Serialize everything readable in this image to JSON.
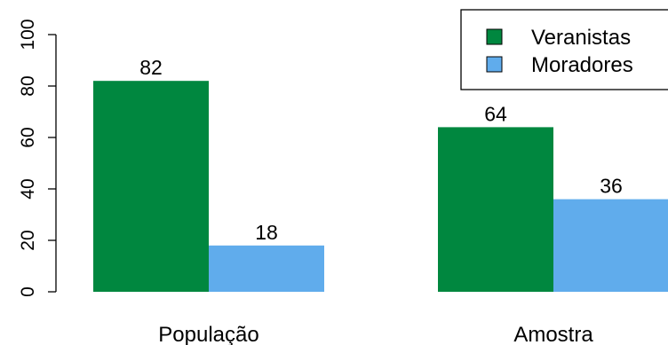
{
  "chart_data": {
    "type": "bar",
    "categories": [
      "População",
      "Amostra"
    ],
    "series": [
      {
        "name": "Veranistas",
        "values": [
          82,
          64
        ],
        "color": "#00873F"
      },
      {
        "name": "Moradores",
        "values": [
          18,
          36
        ],
        "color": "#60ACEC"
      }
    ],
    "ylim": [
      0,
      100
    ],
    "yticks": [
      "0",
      "20",
      "40",
      "60",
      "80",
      "100"
    ],
    "data_labels": [
      [
        "82",
        "64"
      ],
      [
        "18",
        "36"
      ]
    ],
    "legend_position": "top-right",
    "grid": false
  }
}
